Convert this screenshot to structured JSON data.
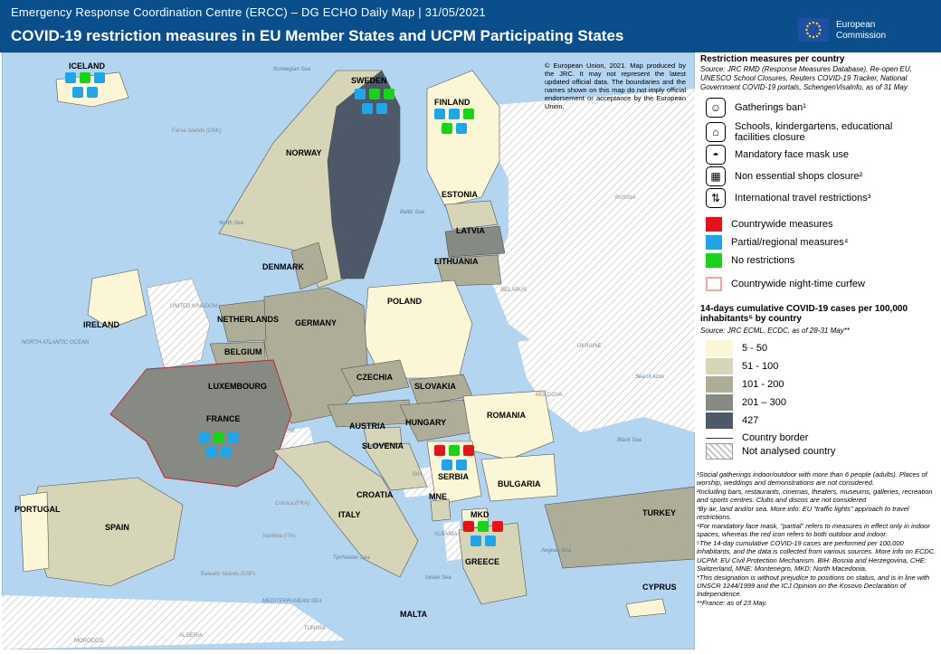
{
  "header": {
    "line1": "Emergency Response Coordination Centre (ERCC) – DG ECHO Daily Map | 31/05/2021",
    "title": "COVID-19 restriction measures in EU Member States and UCPM Participating States",
    "logo_line1": "European",
    "logo_line2": "Commission"
  },
  "disclaimer": "© European Union, 2021. Map produced by the JRC. It may not represent the latest updated official data. The boundaries and the names shown on this map do not imply official endorsement or acceptance by the European Union.",
  "legend": {
    "title": "Restriction measures per country",
    "source_prefix": "Source:",
    "source_links": [
      "JRC RMD",
      "Re-open EU",
      "UNESCO",
      "Reuters",
      "SchengenVisaInfo"
    ],
    "source_text": "Source: JRC RMD (Response Measures Database), Re-open EU, UNESCO School Closures, Reuters COVID-19 Tracker, National Government COVID-19 portals, SchengenVisaInfo, as of 31 May",
    "measures": [
      {
        "label": "Gatherings ban¹",
        "icon": "people-icon"
      },
      {
        "label": "Schools, kindergartens, educational facilities closure",
        "icon": "school-icon"
      },
      {
        "label": "Mandatory face mask use",
        "icon": "face-mask-icon"
      },
      {
        "label": "Non essential shops closure²",
        "icon": "shop-icon"
      },
      {
        "label": "International travel restrictions³",
        "icon": "travel-arrows-icon"
      }
    ],
    "status": [
      {
        "label": "Countrywide measures",
        "color": "#e8131a"
      },
      {
        "label": "Partial/regional measures⁴",
        "color": "#1ea6e8"
      },
      {
        "label": "No restrictions",
        "color": "#18d418"
      },
      {
        "label": "Countrywide night-time curfew",
        "color": "#f1a6a6"
      }
    ],
    "cases_title": "14-days cumulative COVID-19 cases per 100,000 inhabitants⁵ by country",
    "cases_source": "Source: JRC ECML, ECDC, as of 28-31 May**",
    "classes": [
      {
        "label": "5 - 50",
        "color": "#fbf7d6"
      },
      {
        "label": "51 - 100",
        "color": "#d6d5b8"
      },
      {
        "label": "101 - 200",
        "color": "#aeae98"
      },
      {
        "label": "201 – 300",
        "color": "#868a82"
      },
      {
        "label": "427",
        "color": "#4d5968"
      }
    ],
    "border_label": "Country border",
    "not_analysed_label": "Not analysed country"
  },
  "footnotes": [
    "¹Social gatherings indoor/outdoor with more than 6 people (adults). Places of worship, weddings and demonstrations are not considered.",
    "²Including bars, restaurants, cinemas, theaters, museums, galleries, recreation and sports centres. Clubs and discos are not considered",
    "³By air, land and/or sea. More info: EU \"traffic lights\" approach to travel restrictions.",
    "⁴For mandatory face mask, \"partial\" refers to measures in effect only in indoor spaces, whereas the red icon refers to both outdoor and indoor.",
    "⁵The 14-day cumulative COVID-19 cases are performed per 100,000 inhabitants, and the data is collected from various sources. More info on ECDC.",
    "UCPM: EU Civil Protection Mechanism. BIH: Bosnia and Herzegovina, CHE: Switzerland, MNE: Montenegro, MKD: North Macedonia.",
    "*This designation is without prejudice to positions on status, and is in line with UNSCR 1244/1999 and the ICJ Opinion on the Kosovo Declaration of Independence.",
    "**France: as of 23 May."
  ],
  "map": {
    "countries": [
      "ICELAND",
      "SWEDEN",
      "FINLAND",
      "NORWAY",
      "ESTONIA",
      "LATVIA",
      "LITHUANIA",
      "DENMARK",
      "IRELAND",
      "NETHERLANDS",
      "GERMANY",
      "POLAND",
      "BELGIUM",
      "LUXEMBOURG",
      "CZECHIA",
      "SLOVAKIA",
      "FRANCE",
      "AUSTRIA",
      "HUNGARY",
      "ROMANIA",
      "SLOVENIA",
      "CROATIA",
      "SERBIA",
      "BULGARIA",
      "MNE",
      "PORTUGAL",
      "SPAIN",
      "ITALY",
      "MKD",
      "TURKEY",
      "GREECE",
      "CYPRUS",
      "MALTA"
    ],
    "seas": [
      "Norwegian Sea",
      "North Sea",
      "NORTH ATLANTIC OCEAN",
      "Baltic Sea",
      "Black Sea",
      "Sea of Azov",
      "Tyrrhenian Sea",
      "Ionian Sea",
      "Aegean Sea",
      "MEDITERRANEAN SEA",
      "Adriatic Sea"
    ],
    "others": [
      "Faroe Islands (DNK)",
      "RUSSIA",
      "BELARUS",
      "UKRAINE",
      "MOLDOVA",
      "UNITED KINGDOM",
      "CHE",
      "BIH",
      "ALBANIA",
      "Kosovo*",
      "Corsica (FRA)",
      "Sardinia (ITA)",
      "Balearic Islands (ESP)",
      "ALGERIA",
      "TUNISIA",
      "MOROCCO"
    ]
  }
}
